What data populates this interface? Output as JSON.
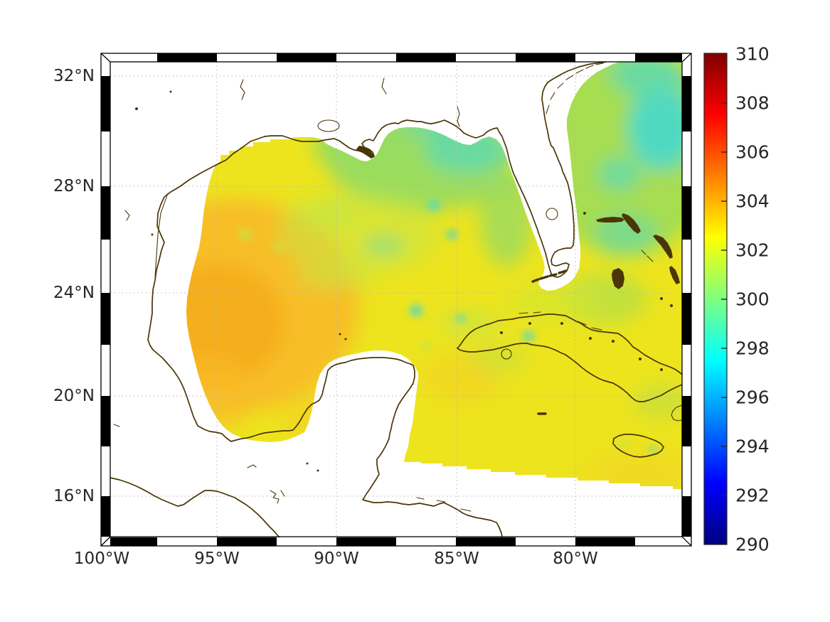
{
  "figure": {
    "background": "#ffffff"
  },
  "theme": {
    "background": "#ffffff",
    "coastline": "#4a3606",
    "gridline": "#b5b5b5",
    "label": "#262626",
    "frame": "#000000",
    "sst-base": "#EDE41E",
    "sst-orange": "#F8BC28",
    "sst-orange-deep": "#F5AA1C",
    "sst-green": "#98DB60",
    "sst-teal": "#5FD9B2",
    "sst-cyan": "#42D8D6",
    "sst-green-light": "#C6E546",
    "sst-warm": "#F6CE25",
    "sst-straits": "#D2E72E",
    "sst-atlantic-green": "#9FDC55"
  },
  "map": {
    "projection": "Mercator",
    "lat_ticks": [
      {
        "label": "32°N",
        "value": 32
      },
      {
        "label": "28°N",
        "value": 28
      },
      {
        "label": "24°N",
        "value": 24
      },
      {
        "label": "20°N",
        "value": 20
      },
      {
        "label": "16°N",
        "value": 16
      }
    ],
    "lon_ticks": [
      {
        "label": "100°W",
        "value": -100
      },
      {
        "label": "95°W",
        "value": -95
      },
      {
        "label": "90°W",
        "value": -90
      },
      {
        "label": "85°W",
        "value": -85
      },
      {
        "label": "80°W",
        "value": -80
      }
    ]
  },
  "colorbar": {
    "min": 290,
    "max": 310,
    "colormap": "jet",
    "ticks": [
      {
        "label": "310",
        "value": 310
      },
      {
        "label": "308",
        "value": 308
      },
      {
        "label": "306",
        "value": 306
      },
      {
        "label": "304",
        "value": 304
      },
      {
        "label": "302",
        "value": 302
      },
      {
        "label": "300",
        "value": 300
      },
      {
        "label": "298",
        "value": 298
      },
      {
        "label": "296",
        "value": 296
      },
      {
        "label": "294",
        "value": 294
      },
      {
        "label": "292",
        "value": 292
      },
      {
        "label": "290",
        "value": 290
      }
    ],
    "stops": [
      {
        "value": 290,
        "color": "#000080"
      },
      {
        "value": 292.5,
        "color": "#0000ff"
      },
      {
        "value": 297.5,
        "color": "#00ffff"
      },
      {
        "value": 302.5,
        "color": "#ffff00"
      },
      {
        "value": 307.5,
        "color": "#ff0000"
      },
      {
        "value": 310,
        "color": "#800000"
      }
    ]
  },
  "chart_data": {
    "type": "heatmap",
    "title": "",
    "subtitle": "",
    "field_description": "Gridded scalar field (sea-surface temperature style) over the Gulf of Mexico, NW Caribbean and western Atlantic; white = land / no data",
    "colormap": "jet",
    "value_range": [
      290,
      310
    ],
    "colorbar_tick_values": [
      290,
      292,
      294,
      296,
      298,
      300,
      302,
      304,
      306,
      308,
      310
    ],
    "x_axis": {
      "label": "",
      "tick_labels": [
        "100°W",
        "95°W",
        "90°W",
        "85°W",
        "80°W"
      ],
      "range_deg_west": [
        99.5,
        75.5
      ]
    },
    "y_axis": {
      "label": "",
      "tick_labels": [
        "32°N",
        "28°N",
        "24°N",
        "20°N",
        "16°N"
      ],
      "range_deg_north": [
        14.4,
        32.5
      ]
    },
    "grid": "dotted graticule every 4 deg latitude / 5 deg longitude",
    "legend_position": "vertical colorbar on right",
    "region_values": [
      {
        "region": "western Gulf of Mexico core",
        "approx_value": 303.5
      },
      {
        "region": "west-central Gulf",
        "approx_value": 303
      },
      {
        "region": "central Gulf of Mexico",
        "approx_value": 302
      },
      {
        "region": "northeastern Gulf / Florida shelf",
        "approx_value": 300
      },
      {
        "region": "Big Bend coastal patches",
        "approx_value": 299
      },
      {
        "region": "central Gulf eddy ring arc",
        "approx_value": 300.5
      },
      {
        "region": "Atlantic east of Florida",
        "approx_value": 300
      },
      {
        "region": "Atlantic cyan patches near Bahamas",
        "approx_value": 298
      },
      {
        "region": "Florida Straits",
        "approx_value": 301.5
      },
      {
        "region": "NW Caribbean south of Cuba",
        "approx_value": 302
      },
      {
        "region": "Bay of Campeche",
        "approx_value": 302.5
      }
    ],
    "no_data_regions": [
      "continental land (white, coastlines drawn in dark brown)",
      "below diagonal swath edge in lower-right Caribbean"
    ]
  }
}
